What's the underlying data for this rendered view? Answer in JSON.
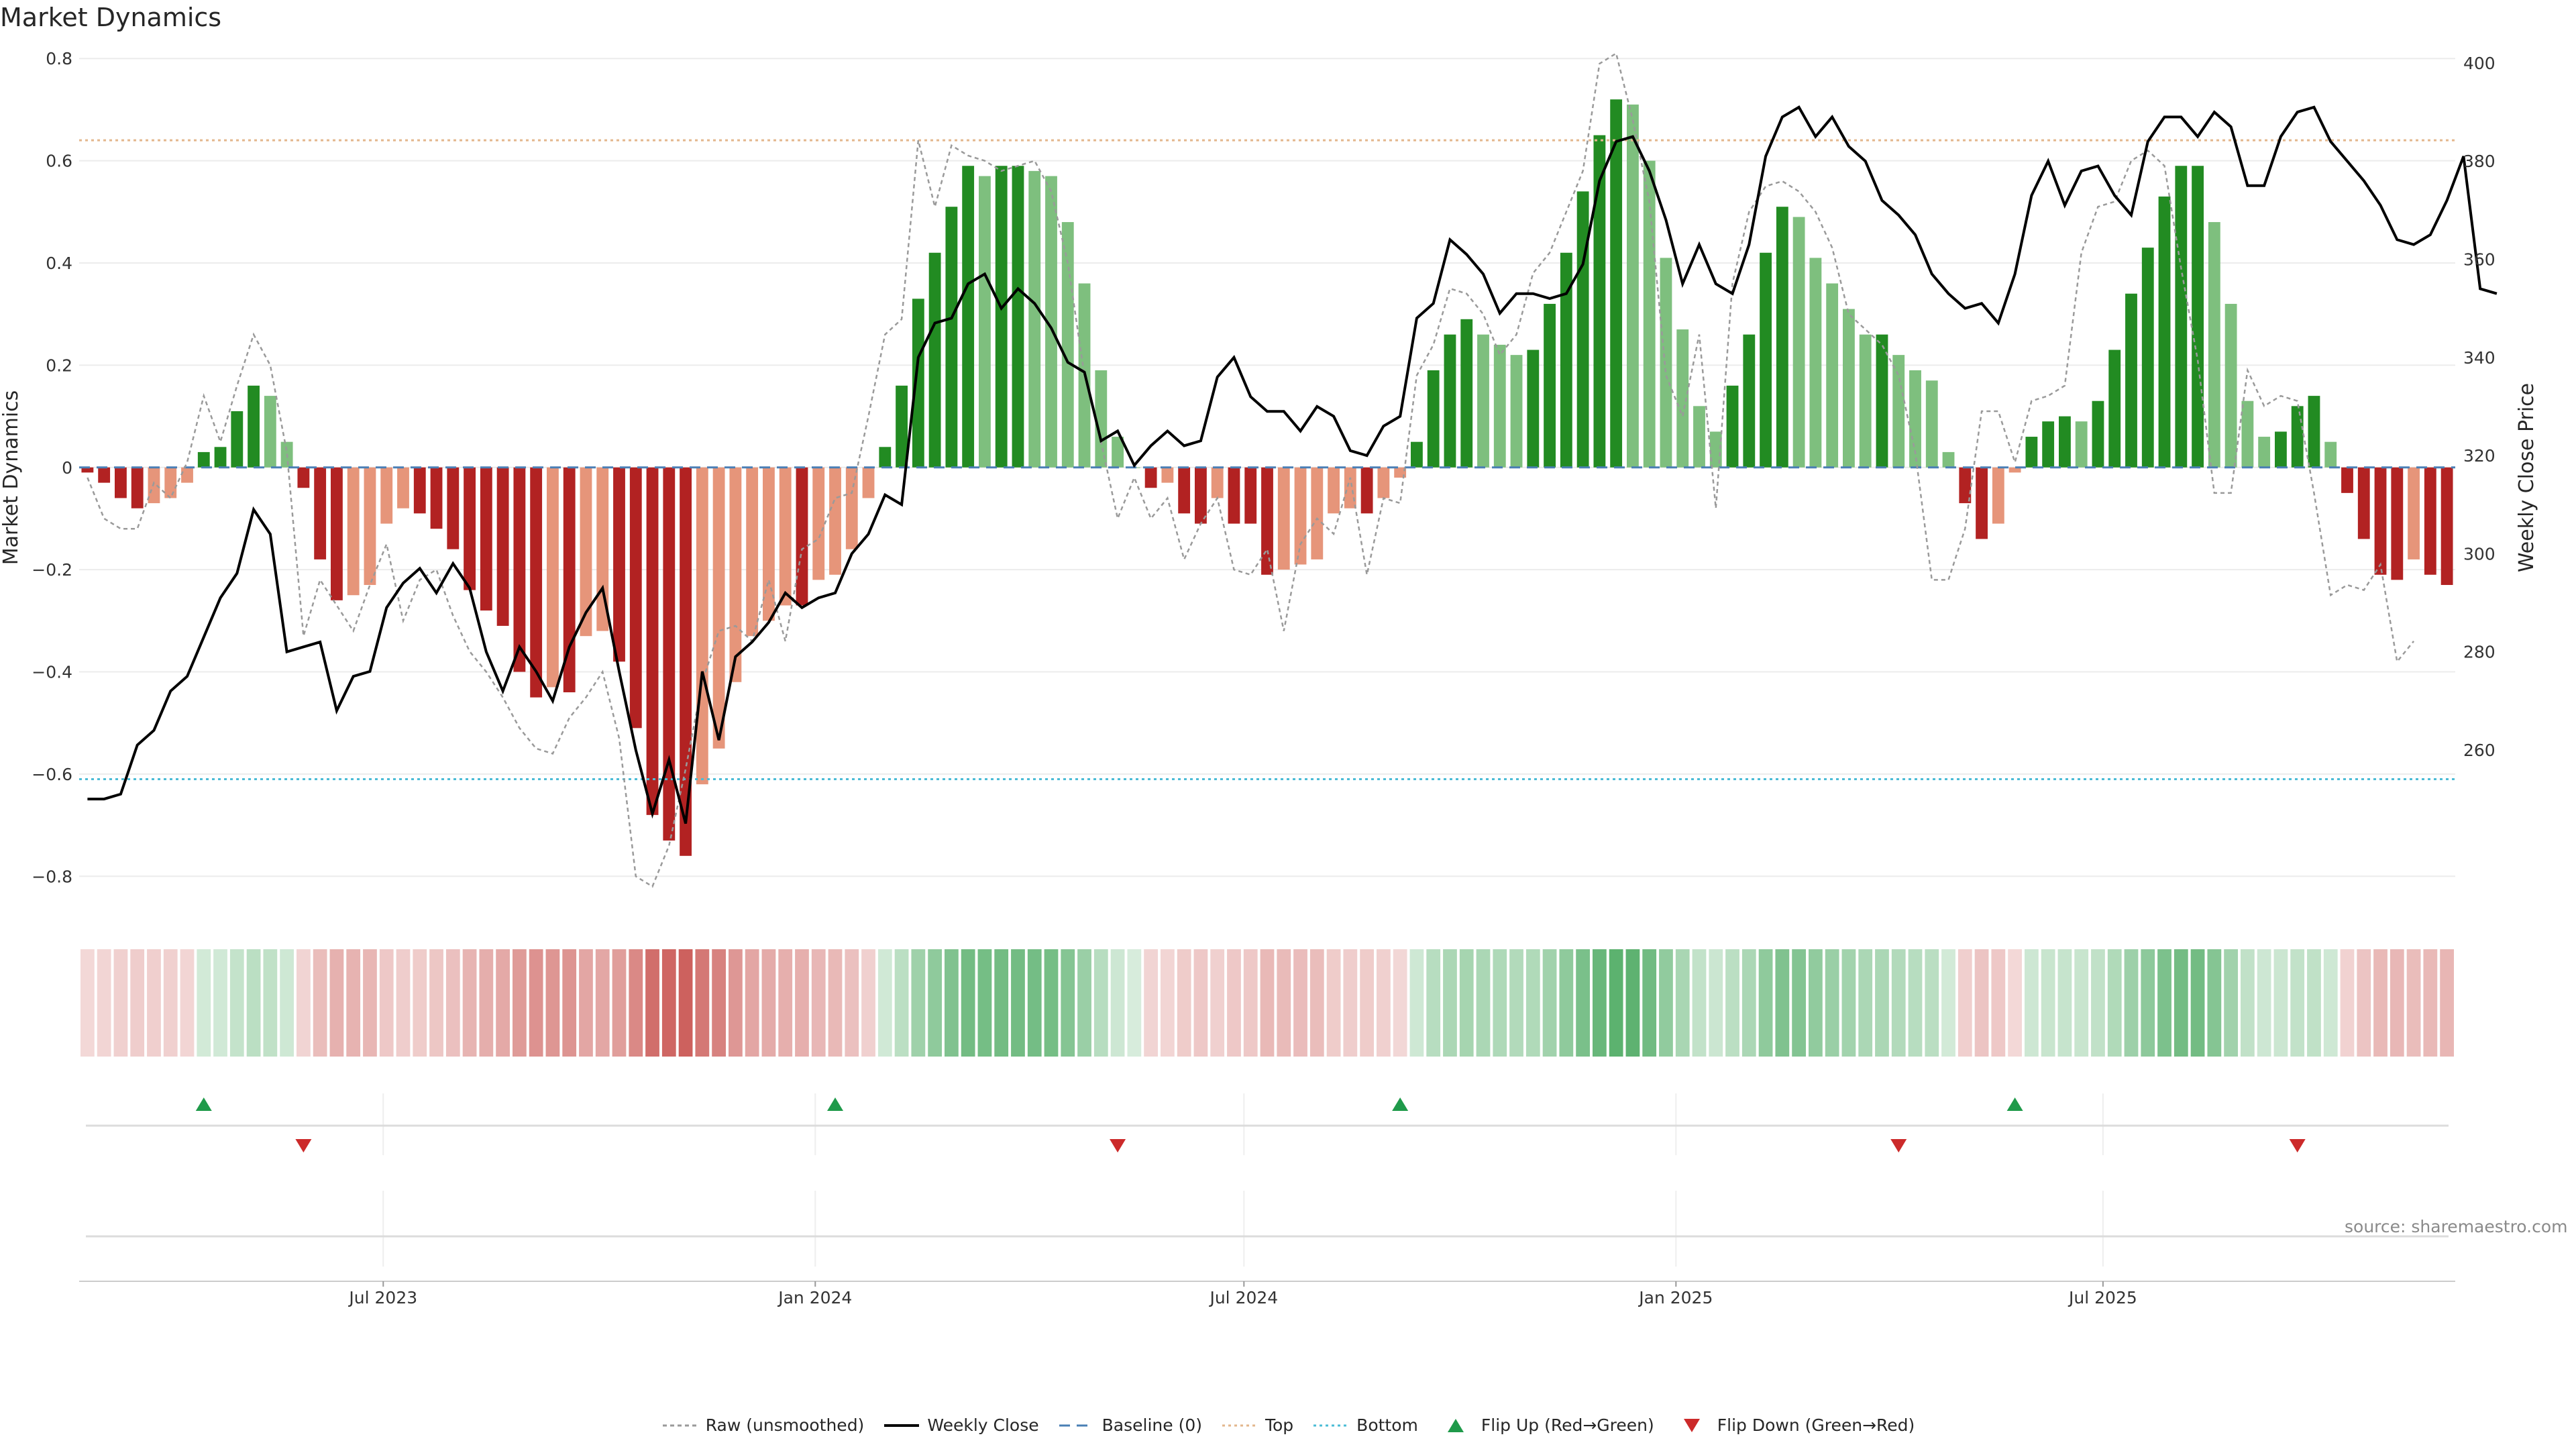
{
  "title": "Market Dynamics",
  "source_text": "source: sharemaestro.com",
  "colors": {
    "strong_green": "#228b22",
    "light_green": "#7ebf7e",
    "strong_red": "#b22222",
    "light_red": "#e6957a",
    "raw": "#9a9a9a",
    "close": "#000000",
    "baseline": "#4a7fb5",
    "top": "#e3b78d",
    "bottom": "#4bbcd6",
    "flip_up": "#1f9a4a",
    "flip_down": "#cc2a2a"
  },
  "legend": [
    {
      "label": "Raw (unsmoothed)",
      "icon": "dotted-gray-line"
    },
    {
      "label": "Weekly Close",
      "icon": "solid-black-line"
    },
    {
      "label": "Baseline (0)",
      "icon": "dashed-blue-line"
    },
    {
      "label": "Top",
      "icon": "dotted-tan-line"
    },
    {
      "label": "Bottom",
      "icon": "dotted-cyan-line"
    },
    {
      "label": "Flip Up (Red→Green)",
      "icon": "green-triangle-up"
    },
    {
      "label": "Flip Down (Green→Red)",
      "icon": "red-triangle-down"
    }
  ],
  "chart_data": {
    "type": "bar",
    "title": "Market Dynamics",
    "ylabel": "Market Dynamics",
    "y2label": "Weekly Close Price",
    "ylim": [
      -0.86,
      0.82
    ],
    "y2lim": [
      228,
      403
    ],
    "yticks": [
      0.8,
      0.6,
      0.4,
      0.2,
      0,
      -0.2,
      -0.4,
      -0.6,
      -0.8
    ],
    "ytick_labels": [
      "0.8",
      "0.6",
      "0.4",
      "0.2",
      "0",
      "−0.2",
      "−0.4",
      "−0.6",
      "−0.8"
    ],
    "y2ticks": [
      400,
      380,
      360,
      340,
      320,
      300,
      280,
      260
    ],
    "top_level": 0.64,
    "bottom_level": -0.61,
    "xtick_labels": [
      "Jul 2023",
      "Jan 2024",
      "Jul 2024",
      "Jan 2025",
      "Jul 2025"
    ],
    "xtick_week_index": [
      18.3,
      44.3,
      70.1,
      96.1,
      121.8
    ],
    "legend_position": "bottom-center",
    "series": [
      {
        "name": "Market Dynamics",
        "kind": "bar",
        "values": [
          -0.01,
          -0.03,
          -0.06,
          -0.08,
          -0.07,
          -0.06,
          -0.03,
          0.03,
          0.04,
          0.11,
          0.16,
          0.14,
          0.05,
          -0.04,
          -0.18,
          -0.26,
          -0.25,
          -0.23,
          -0.11,
          -0.08,
          -0.09,
          -0.12,
          -0.16,
          -0.24,
          -0.28,
          -0.31,
          -0.4,
          -0.45,
          -0.43,
          -0.44,
          -0.33,
          -0.32,
          -0.38,
          -0.51,
          -0.68,
          -0.73,
          -0.76,
          -0.62,
          -0.55,
          -0.42,
          -0.33,
          -0.3,
          -0.27,
          -0.27,
          -0.22,
          -0.21,
          -0.16,
          -0.06,
          0.04,
          0.16,
          0.33,
          0.42,
          0.51,
          0.59,
          0.57,
          0.59,
          0.59,
          0.58,
          0.57,
          0.48,
          0.36,
          0.19,
          0.06,
          0.0,
          -0.04,
          -0.03,
          -0.09,
          -0.11,
          -0.06,
          -0.11,
          -0.11,
          -0.21,
          -0.2,
          -0.19,
          -0.18,
          -0.09,
          -0.08,
          -0.09,
          -0.06,
          -0.02,
          0.05,
          0.19,
          0.26,
          0.29,
          0.26,
          0.24,
          0.22,
          0.23,
          0.32,
          0.42,
          0.54,
          0.65,
          0.72,
          0.71,
          0.6,
          0.41,
          0.27,
          0.12,
          0.07,
          0.16,
          0.26,
          0.42,
          0.51,
          0.49,
          0.41,
          0.36,
          0.31,
          0.26,
          0.26,
          0.22,
          0.19,
          0.17,
          0.03,
          -0.07,
          -0.14,
          -0.11,
          -0.01,
          0.06,
          0.09,
          0.1,
          0.09,
          0.13,
          0.23,
          0.34,
          0.43,
          0.53,
          0.59,
          0.59,
          0.48,
          0.32,
          0.13,
          0.06,
          0.07,
          0.12,
          0.14,
          0.05,
          -0.05,
          -0.14,
          -0.21,
          -0.22,
          -0.18,
          -0.21,
          -0.23
        ]
      },
      {
        "name": "Raw (unsmoothed)",
        "kind": "line",
        "values": [
          -0.02,
          -0.1,
          -0.12,
          -0.12,
          -0.03,
          -0.06,
          0.01,
          0.14,
          0.05,
          0.16,
          0.26,
          0.2,
          0.03,
          -0.33,
          -0.22,
          -0.27,
          -0.32,
          -0.23,
          -0.15,
          -0.3,
          -0.22,
          -0.2,
          -0.29,
          -0.36,
          -0.4,
          -0.45,
          -0.51,
          -0.55,
          -0.56,
          -0.49,
          -0.45,
          -0.4,
          -0.53,
          -0.8,
          -0.82,
          -0.74,
          -0.59,
          -0.42,
          -0.32,
          -0.31,
          -0.34,
          -0.22,
          -0.34,
          -0.16,
          -0.14,
          -0.06,
          -0.05,
          0.1,
          0.26,
          0.29,
          0.64,
          0.51,
          0.63,
          0.61,
          0.6,
          0.58,
          0.59,
          0.6,
          0.54,
          0.4,
          0.18,
          0.05,
          -0.1,
          -0.02,
          -0.1,
          -0.06,
          -0.18,
          -0.11,
          -0.06,
          -0.2,
          -0.21,
          -0.16,
          -0.32,
          -0.15,
          -0.1,
          -0.13,
          -0.02,
          -0.21,
          -0.06,
          -0.07,
          0.18,
          0.24,
          0.35,
          0.34,
          0.3,
          0.22,
          0.26,
          0.38,
          0.42,
          0.5,
          0.58,
          0.79,
          0.81,
          0.68,
          0.52,
          0.18,
          0.1,
          0.26,
          -0.08,
          0.36,
          0.5,
          0.55,
          0.56,
          0.54,
          0.5,
          0.43,
          0.3,
          0.27,
          0.24,
          0.18,
          0.03,
          -0.22,
          -0.22,
          -0.12,
          0.11,
          0.11,
          0.01,
          0.13,
          0.14,
          0.16,
          0.42,
          0.51,
          0.52,
          0.6,
          0.62,
          0.59,
          0.39,
          0.21,
          -0.05,
          -0.05,
          0.19,
          0.12,
          0.14,
          0.13,
          -0.05,
          -0.25,
          -0.23,
          -0.24,
          -0.19,
          -0.38,
          -0.34
        ]
      },
      {
        "name": "Weekly Close",
        "kind": "line",
        "axis": "right",
        "values": [
          250,
          250,
          251,
          261,
          264,
          272,
          275,
          283,
          291,
          296,
          309,
          304,
          280,
          281,
          282,
          268,
          275,
          276,
          289,
          294,
          297,
          292,
          298,
          293,
          280,
          272,
          281,
          276,
          270,
          281,
          288,
          293,
          276,
          260,
          247,
          258,
          245,
          276,
          262,
          279,
          282,
          286,
          292,
          289,
          291,
          292,
          300,
          304,
          312,
          310,
          340,
          347,
          348,
          355,
          357,
          350,
          354,
          351,
          346,
          339,
          337,
          323,
          325,
          318,
          322,
          325,
          322,
          323,
          336,
          340,
          332,
          329,
          329,
          325,
          330,
          328,
          321,
          320,
          326,
          328,
          348,
          351,
          364,
          361,
          357,
          349,
          353,
          353,
          352,
          353,
          359,
          376,
          384,
          385,
          378,
          368,
          355,
          363,
          355,
          353,
          363,
          381,
          389,
          391,
          385,
          389,
          383,
          380,
          372,
          369,
          365,
          357,
          353,
          350,
          351,
          347,
          357,
          373,
          380,
          371,
          378,
          379,
          373,
          369,
          384,
          389,
          389,
          385,
          390,
          387,
          375,
          375,
          385,
          390,
          391,
          384,
          380,
          376,
          371,
          364,
          363,
          365,
          372,
          381,
          354,
          353
        ]
      },
      {
        "name": "Baseline (0)",
        "kind": "hline",
        "value": 0
      },
      {
        "name": "Top",
        "kind": "hline",
        "value": 0.64
      },
      {
        "name": "Bottom",
        "kind": "hline",
        "value": -0.61
      }
    ],
    "flip_up_week_index": [
      7,
      45,
      79,
      116
    ],
    "flip_down_week_index": [
      13,
      62,
      109,
      133
    ]
  }
}
